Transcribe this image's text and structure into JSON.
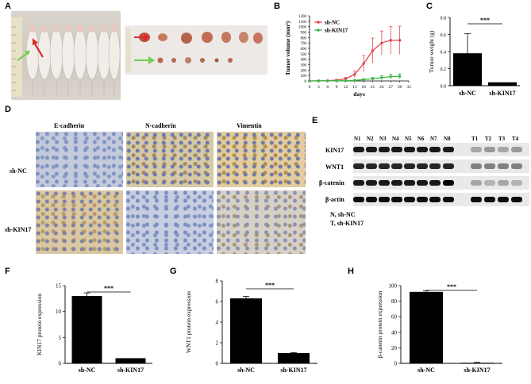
{
  "panels": {
    "A": "A",
    "B": "B",
    "C": "C",
    "D": "D",
    "E": "E",
    "F": "F",
    "G": "G",
    "H": "H"
  },
  "colors": {
    "ncRed": "#e8464e",
    "kinGreen": "#3fb648",
    "bar": "#000000"
  },
  "chartB": {
    "type": "line",
    "ylabel": "Tumor volume (mm³)",
    "xlabel": "days",
    "xticks": [
      "0",
      "3",
      "6",
      "9",
      "12",
      "15",
      "18",
      "21",
      "24",
      "27",
      "30",
      "33"
    ],
    "yticks": [
      "0",
      "100",
      "200",
      "300",
      "400",
      "500",
      "600",
      "700",
      "800",
      "900",
      "1000",
      "1100",
      "1200"
    ],
    "legend": [
      "sh-NC",
      "sh-KIN17"
    ]
  },
  "chart_data": [
    {
      "type": "line",
      "xlabel": "days",
      "ylabel": "Tumor volume (mm3)",
      "xlim": [
        0,
        33
      ],
      "ylim": [
        0,
        1200
      ],
      "series": [
        {
          "name": "sh-NC",
          "x": [
            0,
            3,
            6,
            9,
            12,
            15,
            18,
            21,
            24,
            27,
            30
          ],
          "values": [
            0,
            2,
            5,
            15,
            40,
            120,
            320,
            560,
            700,
            750,
            750
          ],
          "err": [
            0,
            2,
            4,
            10,
            25,
            60,
            150,
            230,
            220,
            250,
            260
          ]
        },
        {
          "name": "sh-KIN17",
          "x": [
            0,
            3,
            6,
            9,
            12,
            15,
            18,
            21,
            24,
            27,
            30
          ],
          "values": [
            0,
            1,
            2,
            4,
            6,
            10,
            25,
            40,
            60,
            80,
            85
          ],
          "err": [
            0,
            1,
            1,
            3,
            5,
            8,
            15,
            25,
            35,
            45,
            45
          ]
        }
      ]
    },
    {
      "type": "bar",
      "categories": [
        "sh-NC",
        "sh-KIN17"
      ],
      "values": [
        0.38,
        0.04
      ],
      "err": [
        0.23,
        0.0
      ],
      "ylabel": "Tumor weight (g)",
      "ylim": [
        0,
        0.8
      ],
      "yticks": [
        "0.0",
        "0.2",
        "0.4",
        "0.6",
        "0.8"
      ],
      "sig": "***"
    },
    {
      "type": "bar",
      "categories": [
        "sh-NC",
        "sh-KIN17"
      ],
      "values": [
        13,
        1
      ],
      "err": [
        0.6,
        0
      ],
      "ylabel": "KIN17 protein expression",
      "ylim": [
        0,
        15
      ],
      "yticks": [
        "0",
        "5",
        "10",
        "15"
      ],
      "sig": "***"
    },
    {
      "type": "bar",
      "categories": [
        "sh-NC",
        "sh-KIN17"
      ],
      "values": [
        6.3,
        1.0
      ],
      "err": [
        0.2,
        0.05
      ],
      "ylabel": "WNT1 protein expression",
      "ylim": [
        0,
        8
      ],
      "yticks": [
        "0",
        "2",
        "4",
        "6",
        "8"
      ],
      "sig": "***"
    },
    {
      "type": "bar",
      "categories": [
        "sh-NC",
        "sh-KIN17"
      ],
      "values": [
        92,
        0.8
      ],
      "err": [
        1.5,
        0.5
      ],
      "ylabel": "β-catenin protein expression",
      "ylim": [
        0,
        100
      ],
      "yticks": [
        "0",
        "20",
        "40",
        "60",
        "80",
        "100"
      ],
      "sig": "***"
    }
  ],
  "ihc": {
    "cols": [
      "E-cadherin",
      "N-cadherin",
      "Vimentin"
    ],
    "rows": [
      "sh-NC",
      "sh-KIN17"
    ]
  },
  "blot": {
    "lanesN": [
      "N1",
      "N2",
      "N3",
      "N4",
      "N5",
      "N6",
      "N7",
      "N8"
    ],
    "lanesT": [
      "T1",
      "T2",
      "T3",
      "T4"
    ],
    "rows": [
      "KIN17",
      "WNT1",
      "β-catenin",
      "β-actin"
    ],
    "legend1": "N, sh-NC",
    "legend2": "T, sh-KIN17"
  }
}
